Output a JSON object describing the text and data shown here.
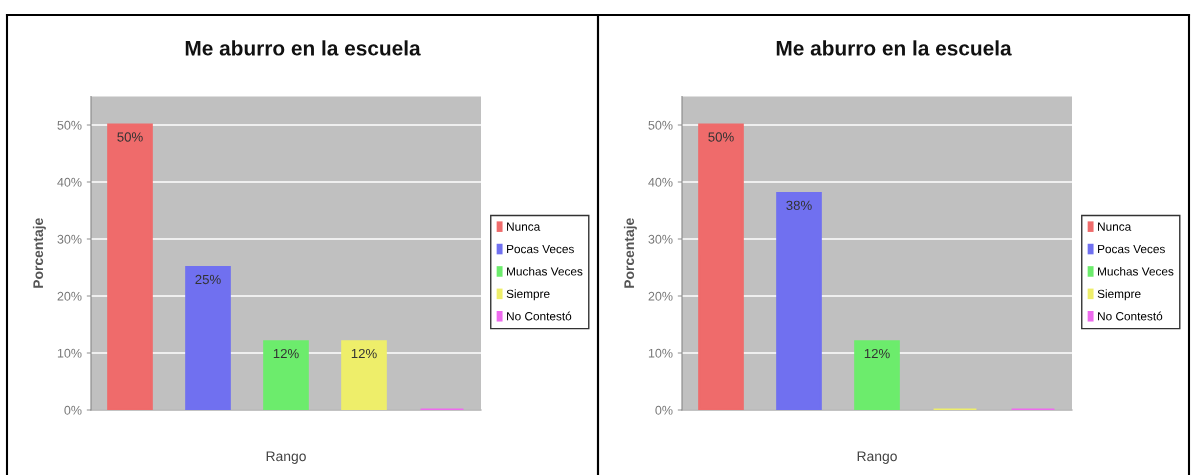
{
  "chart_data": [
    {
      "type": "bar",
      "title": "Me aburro en la escuela",
      "xlabel": "Rango",
      "ylabel": "Porcentaje",
      "categories": [
        null
      ],
      "series": [
        {
          "name": "Nunca",
          "color": "#ef6b6b",
          "values": [
            50
          ],
          "value_labels": [
            "50%"
          ]
        },
        {
          "name": "Pocas Veces",
          "color": "#7070f0",
          "values": [
            25
          ],
          "value_labels": [
            "25%"
          ]
        },
        {
          "name": "Muchas Veces",
          "color": "#6cec6c",
          "values": [
            12
          ],
          "value_labels": [
            "12%"
          ]
        },
        {
          "name": "Siempre",
          "color": "#eeee6a",
          "values": [
            12
          ],
          "value_labels": [
            "12%"
          ]
        },
        {
          "name": "No Contestó",
          "color": "#ee6aee",
          "values": [
            0
          ],
          "value_labels": [
            null
          ]
        }
      ],
      "ylim": [
        0,
        55
      ],
      "yticks": [
        {
          "value": 0,
          "label": "0%"
        },
        {
          "value": 10,
          "label": "10%"
        },
        {
          "value": 20,
          "label": "20%"
        },
        {
          "value": 30,
          "label": "30%"
        },
        {
          "value": 40,
          "label": "40%"
        },
        {
          "value": 50,
          "label": "50%"
        }
      ],
      "grid": "y",
      "legend": "right"
    },
    {
      "type": "bar",
      "title": "Me aburro en la escuela",
      "xlabel": "Rango",
      "ylabel": "Porcentaje",
      "categories": [
        null
      ],
      "series": [
        {
          "name": "Nunca",
          "color": "#ef6b6b",
          "values": [
            50
          ],
          "value_labels": [
            "50%"
          ]
        },
        {
          "name": "Pocas Veces",
          "color": "#7070f0",
          "values": [
            38
          ],
          "value_labels": [
            "38%"
          ]
        },
        {
          "name": "Muchas Veces",
          "color": "#6cec6c",
          "values": [
            12
          ],
          "value_labels": [
            "12%"
          ]
        },
        {
          "name": "Siempre",
          "color": "#eeee6a",
          "values": [
            0
          ],
          "value_labels": [
            null
          ]
        },
        {
          "name": "No Contestó",
          "color": "#ee6aee",
          "values": [
            0
          ],
          "value_labels": [
            null
          ]
        }
      ],
      "ylim": [
        0,
        55
      ],
      "yticks": [
        {
          "value": 0,
          "label": "0%"
        },
        {
          "value": 10,
          "label": "10%"
        },
        {
          "value": 20,
          "label": "20%"
        },
        {
          "value": 30,
          "label": "30%"
        },
        {
          "value": 40,
          "label": "40%"
        },
        {
          "value": 50,
          "label": "50%"
        }
      ],
      "grid": "y",
      "legend": "right"
    }
  ]
}
